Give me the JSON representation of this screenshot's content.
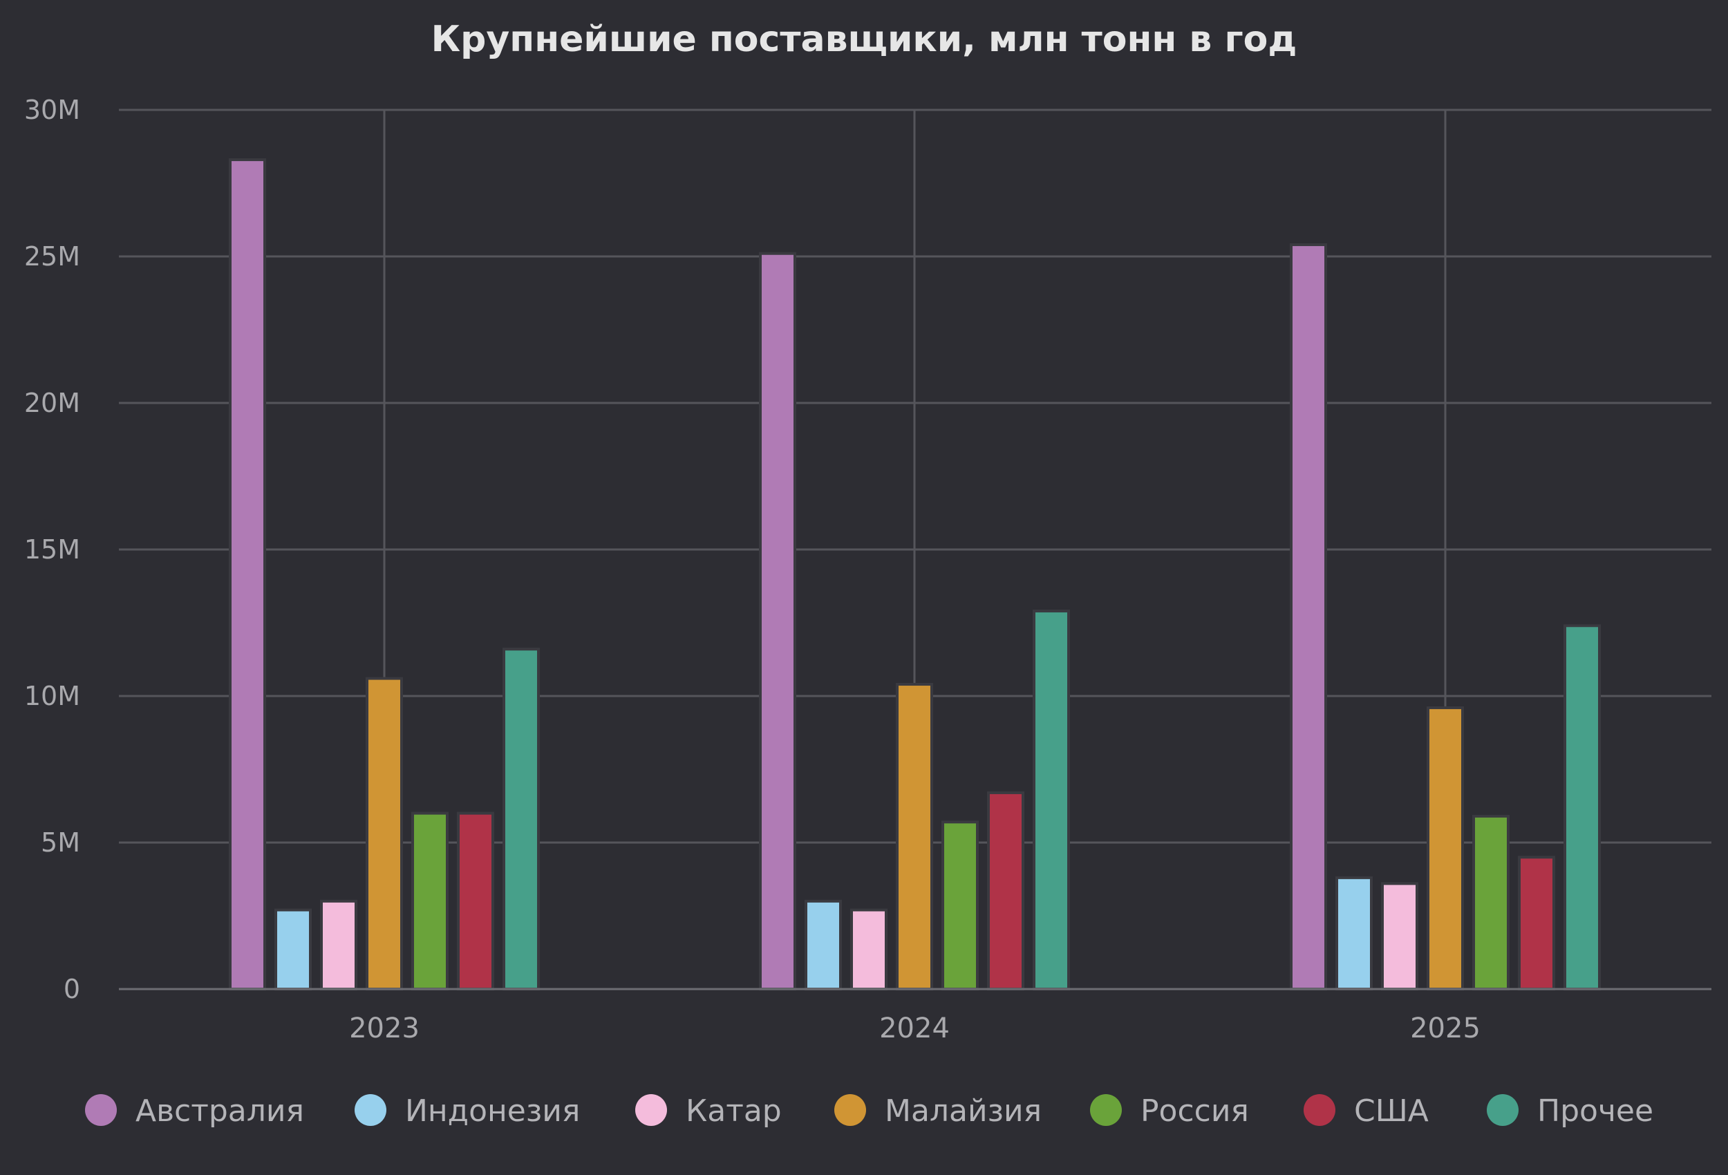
{
  "chart_data": {
    "type": "bar",
    "title": "Крупнейшие поставщики, млн тонн в год",
    "xlabel": "",
    "ylabel": "",
    "categories": [
      "2023",
      "2024",
      "2025"
    ],
    "ylim": [
      0,
      30000000
    ],
    "yticks": [
      0,
      5000000,
      10000000,
      15000000,
      20000000,
      25000000,
      30000000
    ],
    "ytick_labels": [
      "0",
      "5M",
      "10M",
      "15M",
      "20M",
      "25M",
      "30M"
    ],
    "grid": true,
    "legend_position": "bottom",
    "series": [
      {
        "name": "Австралия",
        "color": "#b07bb5",
        "values": [
          28300000,
          25100000,
          25400000
        ]
      },
      {
        "name": "Индонезия",
        "color": "#97d0ed",
        "values": [
          2700000,
          3000000,
          3800000
        ]
      },
      {
        "name": "Катар",
        "color": "#f4bcdc",
        "values": [
          3000000,
          2700000,
          3600000
        ]
      },
      {
        "name": "Малайзия",
        "color": "#d09534",
        "values": [
          10600000,
          10400000,
          9600000
        ]
      },
      {
        "name": "Россия",
        "color": "#6aa33a",
        "values": [
          6000000,
          5700000,
          5900000
        ]
      },
      {
        "name": "США",
        "color": "#b03348",
        "values": [
          6000000,
          6700000,
          4500000
        ]
      },
      {
        "name": "Прочее",
        "color": "#47a08a",
        "values": [
          11600000,
          12900000,
          12400000
        ]
      }
    ]
  }
}
